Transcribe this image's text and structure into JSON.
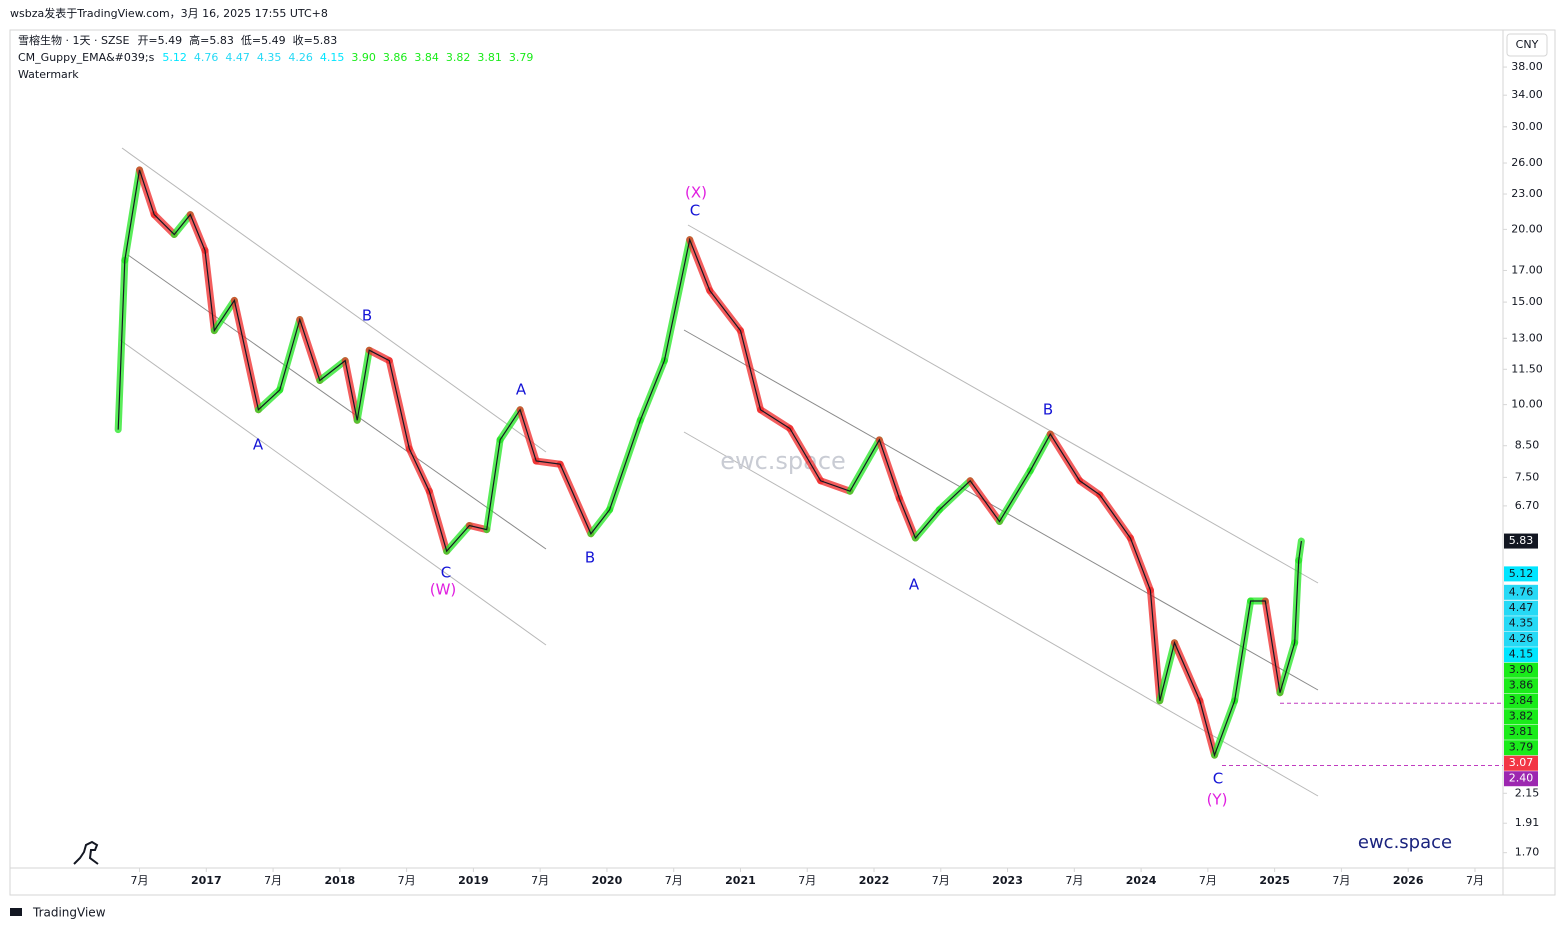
{
  "header": {
    "text": "wsbza发表于TradingView.com，3月 16, 2025 17:55 UTC+8"
  },
  "footer": {
    "brand": "TradingView"
  },
  "chart_data": {
    "type": "line",
    "symbol": "雪榕生物 · 1天 · SZSE",
    "ohlc": [
      {
        "label": "开=",
        "value": 5.49
      },
      {
        "label": "高=",
        "value": 5.83
      },
      {
        "label": "低=",
        "value": 5.49
      },
      {
        "label": "收=",
        "value": 5.83
      }
    ],
    "indicator": {
      "name": "CM_Guppy_EMA&#039;s",
      "values": [
        {
          "value": 5.12,
          "label": "5.12",
          "color": "#00e5ff"
        },
        {
          "value": 4.76,
          "label": "4.76",
          "color": "#26d9f5"
        },
        {
          "value": 4.47,
          "label": "4.47",
          "color": "#26d9f5"
        },
        {
          "value": 4.35,
          "label": "4.35",
          "color": "#26d9f5"
        },
        {
          "value": 4.26,
          "label": "4.26",
          "color": "#26d9f5"
        },
        {
          "value": 4.15,
          "label": "4.15",
          "color": "#00e5ff"
        },
        {
          "value": 3.9,
          "label": "3.90",
          "color": "#1aeb1a"
        },
        {
          "value": 3.86,
          "label": "3.86",
          "color": "#1aeb1a"
        },
        {
          "value": 3.84,
          "label": "3.84",
          "color": "#1aeb1a"
        },
        {
          "value": 3.82,
          "label": "3.82",
          "color": "#1aeb1a"
        },
        {
          "value": 3.81,
          "label": "3.81",
          "color": "#1aeb1a"
        },
        {
          "value": 3.79,
          "label": "3.79",
          "color": "#1aeb1a"
        }
      ]
    },
    "watermark_label": "Watermark",
    "currency": "CNY",
    "watermark": "ewc.space",
    "brand_text": "ewc.space",
    "log_scale": true,
    "rise_color": "#22e622",
    "fall_color": "#f02828",
    "x": [
      2016.34,
      2016.39,
      2016.5,
      2016.61,
      2016.76,
      2016.88,
      2016.99,
      2017.06,
      2017.21,
      2017.39,
      2017.55,
      2017.7,
      2017.85,
      2018.04,
      2018.13,
      2018.22,
      2018.37,
      2018.52,
      2018.67,
      2018.8,
      2018.97,
      2019.1,
      2019.2,
      2019.35,
      2019.47,
      2019.65,
      2019.88,
      2020.02,
      2020.25,
      2020.43,
      2020.62,
      2020.77,
      2021.0,
      2021.15,
      2021.37,
      2021.6,
      2021.82,
      2022.04,
      2022.19,
      2022.31,
      2022.49,
      2022.72,
      2022.94,
      2023.17,
      2023.32,
      2023.54,
      2023.69,
      2023.92,
      2024.07,
      2024.14,
      2024.25,
      2024.44,
      2024.55,
      2024.7,
      2024.82,
      2024.93,
      2025.04,
      2025.15,
      2025.18,
      2025.2
    ],
    "series": [
      {
        "color": "#131722",
        "values": [
          9.06,
          17.7,
          25.3,
          21.2,
          19.6,
          21.2,
          18.4,
          13.4,
          15.1,
          9.8,
          10.6,
          14.0,
          11.0,
          11.9,
          9.4,
          12.4,
          11.9,
          8.4,
          7.1,
          5.6,
          6.2,
          6.1,
          8.7,
          9.8,
          8.0,
          7.9,
          6.0,
          6.6,
          9.4,
          11.9,
          19.2,
          15.7,
          13.4,
          9.8,
          9.1,
          7.4,
          7.1,
          8.7,
          6.9,
          5.9,
          6.6,
          7.4,
          6.3,
          7.7,
          8.9,
          7.4,
          7.0,
          5.9,
          4.8,
          3.1,
          3.9,
          3.1,
          2.5,
          3.1,
          4.6,
          4.6,
          3.2,
          3.9,
          5.4,
          5.83
        ]
      }
    ],
    "last_price": {
      "value": 5.83,
      "label": "5.83",
      "color": "#131722"
    },
    "price_lines": [
      {
        "value": 3.07,
        "label": "3.07",
        "color": "#f23645"
      },
      {
        "value": 2.4,
        "label": "2.40",
        "color": "#9c27b0"
      }
    ],
    "annotations": [
      {
        "text": "A",
        "color": "#1414d6"
      },
      {
        "text": "B",
        "color": "#1414d6"
      },
      {
        "text": "C",
        "color": "#1414d6"
      },
      {
        "text": "(W)",
        "color": "#e01ee0"
      },
      {
        "text": "A",
        "color": "#1414d6"
      },
      {
        "text": "B",
        "color": "#1414d6"
      },
      {
        "text": "(X)",
        "color": "#e01ee0"
      },
      {
        "text": "C",
        "color": "#1414d6"
      },
      {
        "text": "A",
        "color": "#1414d6"
      },
      {
        "text": "B",
        "color": "#1414d6"
      },
      {
        "text": "C",
        "color": "#1414d6"
      },
      {
        "text": "(Y)",
        "color": "#e01ee0"
      }
    ],
    "xlim": [
      2015.53,
      2026.71
    ],
    "xticks": [
      {
        "value": 2016.5,
        "label": "7月"
      },
      2017,
      {
        "value": 2017.5,
        "label": "7月"
      },
      2018,
      {
        "value": 2018.5,
        "label": "7月"
      },
      2019,
      {
        "value": 2019.5,
        "label": "7月"
      },
      2020,
      {
        "value": 2020.5,
        "label": "7月"
      },
      2021,
      {
        "value": 2021.5,
        "label": "7月"
      },
      2022,
      {
        "value": 2022.5,
        "label": "7月"
      },
      2023,
      {
        "value": 2023.5,
        "label": "7月"
      },
      2024,
      {
        "value": 2024.5,
        "label": "7月"
      },
      2025,
      {
        "value": 2025.5,
        "label": "7月"
      },
      2026,
      {
        "value": 2026.5,
        "label": "7月"
      }
    ],
    "ylim": [
      1.6,
      44
    ],
    "yticks": [
      {
        "value": 38,
        "label": "38.00"
      },
      {
        "value": 34,
        "label": "34.00"
      },
      {
        "value": 30,
        "label": "30.00"
      },
      {
        "value": 26,
        "label": "26.00"
      },
      {
        "value": 23,
        "label": "23.00"
      },
      {
        "value": 20,
        "label": "20.00"
      },
      {
        "value": 17,
        "label": "17.00"
      },
      {
        "value": 15,
        "label": "15.00"
      },
      {
        "value": 13,
        "label": "13.00"
      },
      {
        "value": 11.5,
        "label": "11.50"
      },
      {
        "value": 10,
        "label": "10.00"
      },
      {
        "value": 8.5,
        "label": "8.50"
      },
      {
        "value": 7.5,
        "label": "7.50"
      },
      {
        "value": 6.7,
        "label": "6.70"
      },
      {
        "value": 2.15,
        "label": "2.15"
      },
      {
        "value": 1.91,
        "label": "1.91"
      },
      {
        "value": 1.7,
        "label": "1.70"
      }
    ]
  }
}
